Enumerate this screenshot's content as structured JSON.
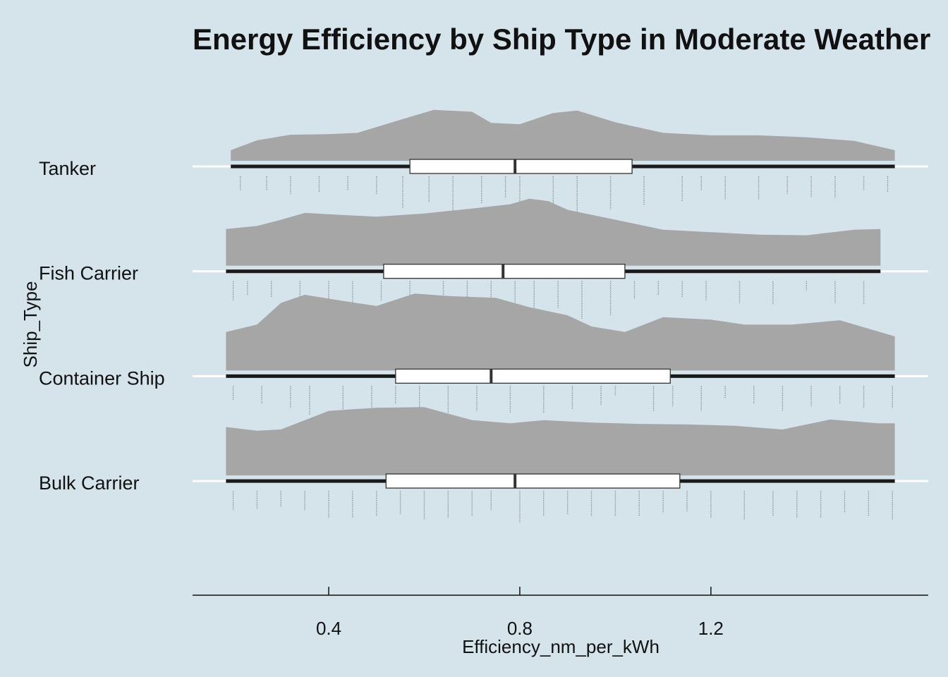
{
  "chart_data": {
    "type": "raincloud",
    "title": "Energy Efficiency by Ship Type in Moderate Weather",
    "xlabel": "Efficiency_nm_per_kWh",
    "ylabel": "Ship_Type",
    "xlim": [
      0.115,
      1.655
    ],
    "x_ticks": [
      0.4,
      0.8,
      1.2
    ],
    "x_tick_labels": [
      "0.4",
      "0.8",
      "1.2"
    ],
    "grid": false,
    "categories": [
      "Tanker",
      "Fish Carrier",
      "Container Ship",
      "Bulk Carrier"
    ],
    "series": [
      {
        "category": "Tanker",
        "min": 0.195,
        "q1": 0.57,
        "median": 0.79,
        "q3": 1.035,
        "max": 1.585,
        "density": [
          [
            0.195,
            0.17
          ],
          [
            0.25,
            0.33
          ],
          [
            0.32,
            0.42
          ],
          [
            0.4,
            0.43
          ],
          [
            0.46,
            0.45
          ],
          [
            0.55,
            0.66
          ],
          [
            0.62,
            0.82
          ],
          [
            0.7,
            0.79
          ],
          [
            0.74,
            0.61
          ],
          [
            0.8,
            0.59
          ],
          [
            0.87,
            0.77
          ],
          [
            0.92,
            0.81
          ],
          [
            1.0,
            0.62
          ],
          [
            1.1,
            0.45
          ],
          [
            1.2,
            0.41
          ],
          [
            1.3,
            0.41
          ],
          [
            1.4,
            0.38
          ],
          [
            1.5,
            0.32
          ],
          [
            1.585,
            0.17
          ]
        ],
        "points": [
          [
            0.215,
            0.43
          ],
          [
            0.27,
            0.43
          ],
          [
            0.32,
            0.55
          ],
          [
            0.38,
            0.5
          ],
          [
            0.44,
            0.43
          ],
          [
            0.5,
            0.55
          ],
          [
            0.555,
            1.0
          ],
          [
            0.61,
            0.82
          ],
          [
            0.66,
            1.5
          ],
          [
            0.72,
            0.85
          ],
          [
            0.77,
            0.7
          ],
          [
            0.8,
            0.95
          ],
          [
            0.87,
            0.9
          ],
          [
            0.92,
            1.2
          ],
          [
            0.99,
            1.05
          ],
          [
            1.06,
            0.9
          ],
          [
            1.14,
            0.8
          ],
          [
            1.18,
            0.45
          ],
          [
            1.23,
            0.75
          ],
          [
            1.3,
            0.75
          ],
          [
            1.36,
            0.55
          ],
          [
            1.41,
            0.65
          ],
          [
            1.46,
            0.7
          ],
          [
            1.52,
            0.45
          ],
          [
            1.57,
            0.5
          ]
        ]
      },
      {
        "category": "Fish Carrier",
        "min": 0.185,
        "q1": 0.515,
        "median": 0.765,
        "q3": 1.02,
        "max": 1.555,
        "density": [
          [
            0.185,
            0.59
          ],
          [
            0.25,
            0.64
          ],
          [
            0.3,
            0.74
          ],
          [
            0.35,
            0.85
          ],
          [
            0.42,
            0.82
          ],
          [
            0.5,
            0.79
          ],
          [
            0.6,
            0.84
          ],
          [
            0.7,
            0.92
          ],
          [
            0.78,
            0.99
          ],
          [
            0.82,
            1.08
          ],
          [
            0.86,
            1.04
          ],
          [
            0.9,
            0.9
          ],
          [
            1.0,
            0.74
          ],
          [
            1.1,
            0.58
          ],
          [
            1.2,
            0.54
          ],
          [
            1.3,
            0.5
          ],
          [
            1.4,
            0.49
          ],
          [
            1.5,
            0.58
          ],
          [
            1.555,
            0.59
          ]
        ],
        "points": [
          [
            0.2,
            0.6
          ],
          [
            0.23,
            0.45
          ],
          [
            0.28,
            0.5
          ],
          [
            0.34,
            0.85
          ],
          [
            0.4,
            0.85
          ],
          [
            0.45,
            1.0
          ],
          [
            0.51,
            0.6
          ],
          [
            0.57,
            0.7
          ],
          [
            0.64,
            0.85
          ],
          [
            0.69,
            0.85
          ],
          [
            0.74,
            0.8
          ],
          [
            0.79,
            0.85
          ],
          [
            0.83,
            1.5
          ],
          [
            0.88,
            0.85
          ],
          [
            0.93,
            1.2
          ],
          [
            0.99,
            1.1
          ],
          [
            1.04,
            0.55
          ],
          [
            1.09,
            0.45
          ],
          [
            1.14,
            0.5
          ],
          [
            1.19,
            0.6
          ],
          [
            1.26,
            0.7
          ],
          [
            1.33,
            0.75
          ],
          [
            1.4,
            0.3
          ],
          [
            1.46,
            0.7
          ],
          [
            1.52,
            0.75
          ]
        ]
      },
      {
        "category": "Container Ship",
        "min": 0.185,
        "q1": 0.54,
        "median": 0.74,
        "q3": 1.115,
        "max": 1.585,
        "density": [
          [
            0.185,
            0.62
          ],
          [
            0.25,
            0.74
          ],
          [
            0.3,
            1.09
          ],
          [
            0.35,
            1.22
          ],
          [
            0.43,
            1.12
          ],
          [
            0.5,
            1.04
          ],
          [
            0.58,
            1.24
          ],
          [
            0.65,
            1.2
          ],
          [
            0.75,
            1.17
          ],
          [
            0.82,
            1.02
          ],
          [
            0.9,
            0.89
          ],
          [
            0.95,
            0.71
          ],
          [
            1.02,
            0.62
          ],
          [
            1.1,
            0.86
          ],
          [
            1.2,
            0.82
          ],
          [
            1.27,
            0.74
          ],
          [
            1.37,
            0.74
          ],
          [
            1.47,
            0.81
          ],
          [
            1.585,
            0.55
          ]
        ],
        "points": [
          [
            0.2,
            0.45
          ],
          [
            0.26,
            0.55
          ],
          [
            0.32,
            0.7
          ],
          [
            0.36,
            0.9
          ],
          [
            0.43,
            0.75
          ],
          [
            0.49,
            0.9
          ],
          [
            0.54,
            0.55
          ],
          [
            0.59,
            1.0
          ],
          [
            0.65,
            0.85
          ],
          [
            0.71,
            0.8
          ],
          [
            0.78,
            0.85
          ],
          [
            0.85,
            0.85
          ],
          [
            0.91,
            0.75
          ],
          [
            0.97,
            0.6
          ],
          [
            1.0,
            0.3
          ],
          [
            1.08,
            0.8
          ],
          [
            1.12,
            0.65
          ],
          [
            1.18,
            0.8
          ],
          [
            1.23,
            0.4
          ],
          [
            1.29,
            0.55
          ],
          [
            1.35,
            0.8
          ],
          [
            1.41,
            0.65
          ],
          [
            1.47,
            0.55
          ],
          [
            1.52,
            0.7
          ],
          [
            1.58,
            0.7
          ]
        ]
      },
      {
        "category": "Bulk Carrier",
        "min": 0.185,
        "q1": 0.52,
        "median": 0.79,
        "q3": 1.135,
        "max": 1.585,
        "density": [
          [
            0.185,
            0.78
          ],
          [
            0.25,
            0.72
          ],
          [
            0.3,
            0.74
          ],
          [
            0.4,
            1.04
          ],
          [
            0.5,
            1.09
          ],
          [
            0.6,
            1.1
          ],
          [
            0.7,
            0.89
          ],
          [
            0.78,
            0.84
          ],
          [
            0.85,
            0.89
          ],
          [
            0.95,
            0.85
          ],
          [
            1.05,
            0.83
          ],
          [
            1.15,
            0.82
          ],
          [
            1.25,
            0.8
          ],
          [
            1.35,
            0.74
          ],
          [
            1.45,
            0.9
          ],
          [
            1.55,
            0.84
          ],
          [
            1.585,
            0.84
          ]
        ],
        "points": [
          [
            0.2,
            0.6
          ],
          [
            0.25,
            0.55
          ],
          [
            0.3,
            0.5
          ],
          [
            0.35,
            0.6
          ],
          [
            0.4,
            0.85
          ],
          [
            0.45,
            0.85
          ],
          [
            0.5,
            0.8
          ],
          [
            0.55,
            0.75
          ],
          [
            0.6,
            0.9
          ],
          [
            0.65,
            0.85
          ],
          [
            0.7,
            0.8
          ],
          [
            0.74,
            0.6
          ],
          [
            0.8,
            1.0
          ],
          [
            0.85,
            0.8
          ],
          [
            0.9,
            0.75
          ],
          [
            0.95,
            0.8
          ],
          [
            1.0,
            0.8
          ],
          [
            1.05,
            0.8
          ],
          [
            1.1,
            0.7
          ],
          [
            1.15,
            0.65
          ],
          [
            1.2,
            0.85
          ],
          [
            1.27,
            0.9
          ],
          [
            1.33,
            0.8
          ],
          [
            1.38,
            0.85
          ],
          [
            1.43,
            0.85
          ],
          [
            1.48,
            0.7
          ],
          [
            1.53,
            0.8
          ],
          [
            1.58,
            0.9
          ]
        ]
      }
    ]
  }
}
